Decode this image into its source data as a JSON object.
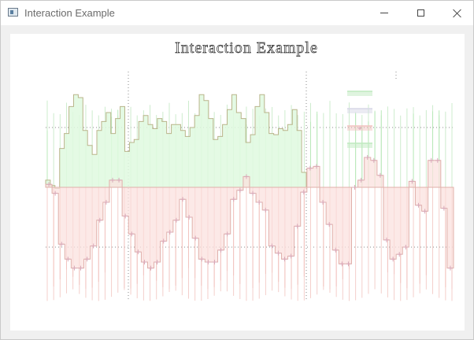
{
  "window": {
    "title": "Interaction Example"
  },
  "chart_data": {
    "type": "area",
    "title": "Interaction Example",
    "xlim": [
      0,
      56
    ],
    "ylim": [
      -1.6,
      1.6
    ],
    "series": [
      {
        "values": [
          0.12,
          0.03,
          -0.02,
          0.65,
          0.9,
          1.35,
          1.55,
          1.5,
          0.95,
          0.7,
          0.55,
          0.95,
          1.1,
          1.25,
          0.9,
          1.15,
          1.35,
          0.6,
          0.75,
          0.8,
          1.1,
          1.2,
          1.05,
          0.98,
          1.15,
          1.1,
          0.9,
          1.05,
          1.05,
          0.95,
          0.85,
          1.0,
          1.2,
          1.55,
          1.45,
          1.15,
          0.8,
          0.85,
          1.05,
          1.3,
          1.55,
          1.25,
          1.15,
          0.75,
          0.88,
          1.35,
          1.55,
          1.25,
          0.9,
          0.88,
          0.98,
          0.95,
          1.05,
          1.3,
          0.95,
          0.25
        ]
      },
      {
        "values": [
          0.05,
          -0.1,
          -0.95,
          -1.2,
          -1.35,
          -1.35,
          -1.2,
          -0.98,
          -0.55,
          -0.25,
          0.12,
          0.12,
          -0.48,
          -0.78,
          -1.08,
          -1.25,
          -1.35,
          -1.25,
          -0.9,
          -0.75,
          -0.55,
          -0.2,
          -0.5,
          -0.85,
          -1.2,
          -1.25,
          -1.25,
          -1.05,
          -0.78,
          -0.2,
          -0.05,
          0.18,
          -0.1,
          -0.25,
          -0.38,
          -0.98,
          -1.1,
          -1.2,
          -1.15,
          -0.65,
          -0.08,
          0.32,
          0.35,
          -0.25,
          -0.62,
          -1.05,
          -1.28,
          -1.28,
          0.0,
          0.12,
          0.5,
          0.45,
          0.2,
          -0.88,
          -1.2,
          -1.12,
          -1.0,
          0.1,
          -0.3,
          -0.4,
          0.45,
          0.45,
          -0.35,
          -1.35
        ]
      }
    ],
    "legend": {
      "position": "top-right",
      "entries": 4
    },
    "grid": true
  }
}
